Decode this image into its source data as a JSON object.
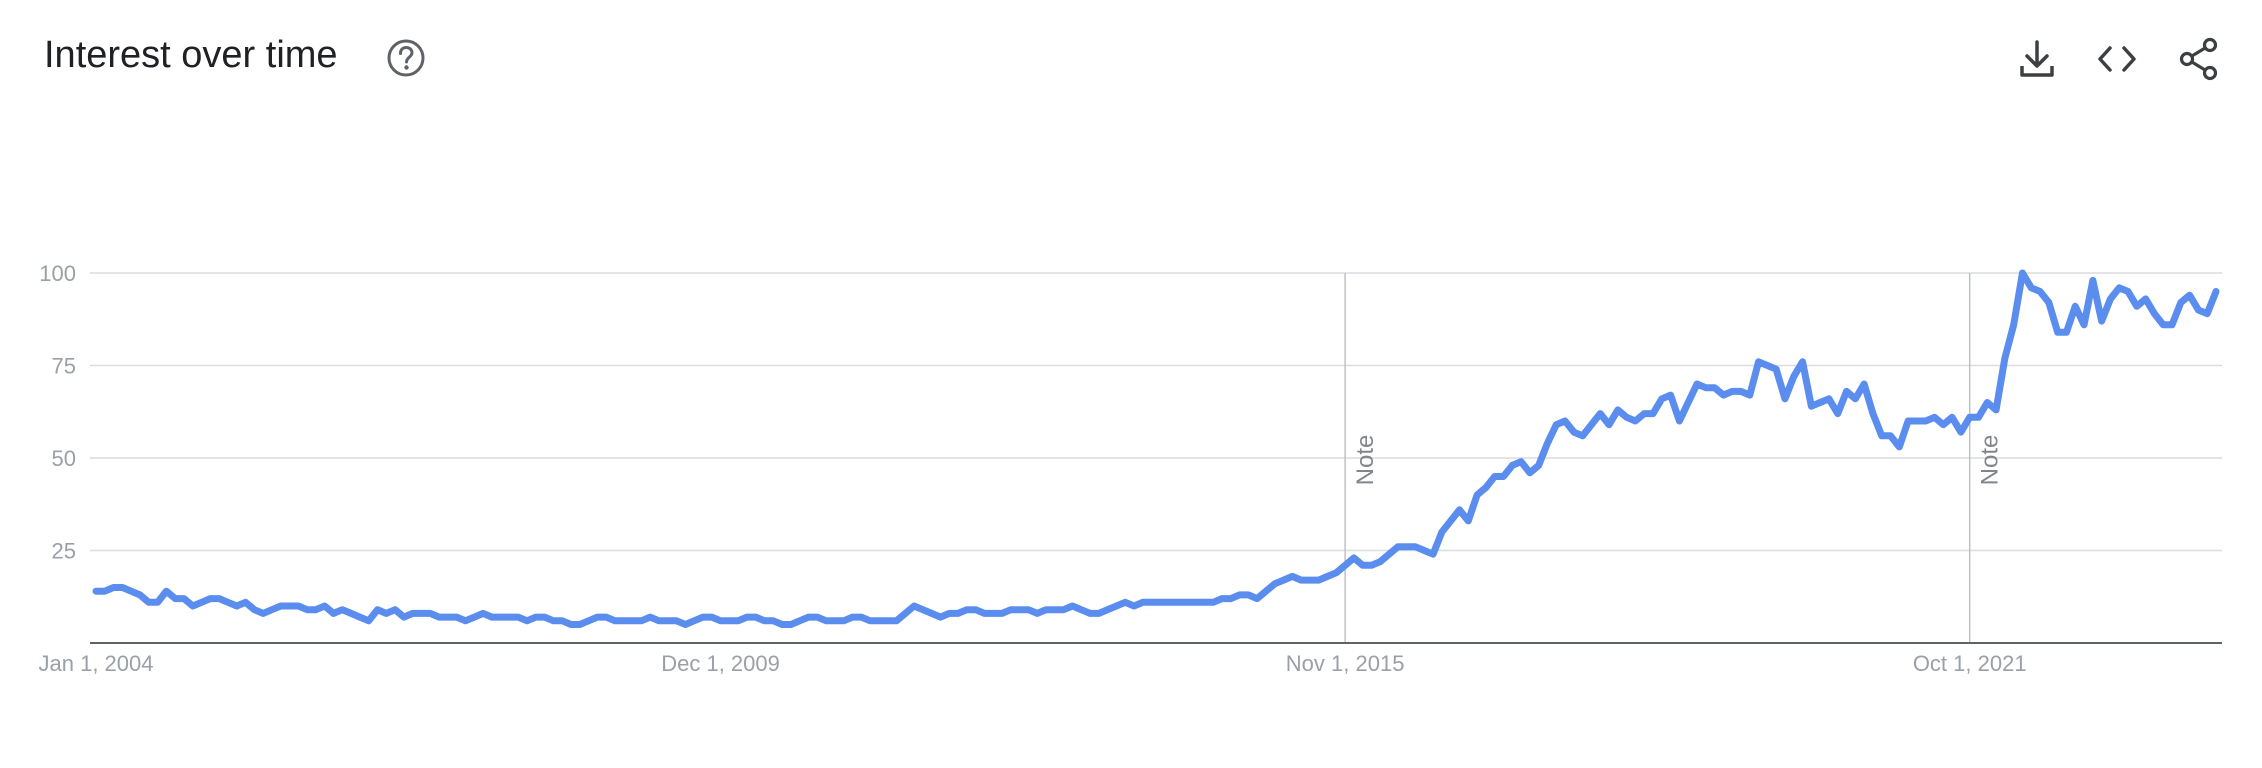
{
  "header": {
    "title": "Interest over time",
    "help_icon": "help-circle-icon",
    "tools": [
      {
        "icon": "download-icon"
      },
      {
        "icon": "embed-code-icon"
      },
      {
        "icon": "share-icon"
      }
    ]
  },
  "chart_data": {
    "type": "line",
    "title": "",
    "xlabel": "",
    "ylabel": "",
    "ylim": [
      0,
      100
    ],
    "y_ticks": [
      "25",
      "50",
      "75",
      "100"
    ],
    "x_tick_labels": [
      "Jan 1, 2004",
      "Dec 1, 2009",
      "Nov 1, 2015",
      "Oct 1, 2021"
    ],
    "x_tick_dates": [
      "2004-01",
      "2009-12",
      "2015-11",
      "2021-10"
    ],
    "grid": true,
    "line_color": "#5b8def",
    "notes": [
      {
        "date": "2015-11",
        "label": "Note"
      },
      {
        "date": "2021-10",
        "label": "Note"
      }
    ],
    "series": [
      {
        "x_start": "2004-01",
        "frequency": "monthly",
        "values": [
          14,
          14,
          15,
          15,
          14,
          13,
          11,
          11,
          14,
          12,
          12,
          10,
          11,
          12,
          12,
          11,
          10,
          11,
          9,
          8,
          9,
          10,
          10,
          10,
          9,
          9,
          10,
          8,
          9,
          8,
          7,
          6,
          9,
          8,
          9,
          7,
          8,
          8,
          8,
          7,
          7,
          7,
          6,
          7,
          8,
          7,
          7,
          7,
          7,
          6,
          7,
          7,
          6,
          6,
          5,
          5,
          6,
          7,
          7,
          6,
          6,
          6,
          6,
          7,
          6,
          6,
          6,
          5,
          6,
          7,
          7,
          6,
          6,
          6,
          7,
          7,
          6,
          6,
          5,
          5,
          6,
          7,
          7,
          6,
          6,
          6,
          7,
          7,
          6,
          6,
          6,
          6,
          8,
          10,
          9,
          8,
          7,
          8,
          8,
          9,
          9,
          8,
          8,
          8,
          9,
          9,
          9,
          8,
          9,
          9,
          9,
          10,
          9,
          8,
          8,
          9,
          10,
          11,
          10,
          11,
          11,
          11,
          11,
          11,
          11,
          11,
          11,
          11,
          12,
          12,
          13,
          13,
          12,
          14,
          16,
          17,
          18,
          17,
          17,
          17,
          18,
          19,
          21,
          23,
          21,
          21,
          22,
          24,
          26,
          26,
          26,
          25,
          24,
          30,
          33,
          36,
          33,
          40,
          42,
          45,
          45,
          48,
          49,
          46,
          48,
          54,
          59,
          60,
          57,
          56,
          59,
          62,
          59,
          63,
          61,
          60,
          62,
          62,
          66,
          67,
          60,
          65,
          70,
          69,
          69,
          67,
          68,
          68,
          67,
          76,
          75,
          74,
          66,
          72,
          76,
          64,
          65,
          66,
          62,
          68,
          66,
          70,
          62,
          56,
          56,
          53,
          60,
          60,
          60,
          61,
          59,
          61,
          57,
          61,
          61,
          65,
          63,
          77,
          86,
          100,
          96,
          95,
          92,
          84,
          84,
          91,
          86,
          98,
          87,
          93,
          96,
          95,
          91,
          93,
          89,
          86,
          86,
          92,
          94,
          90,
          89,
          95
        ]
      }
    ]
  }
}
